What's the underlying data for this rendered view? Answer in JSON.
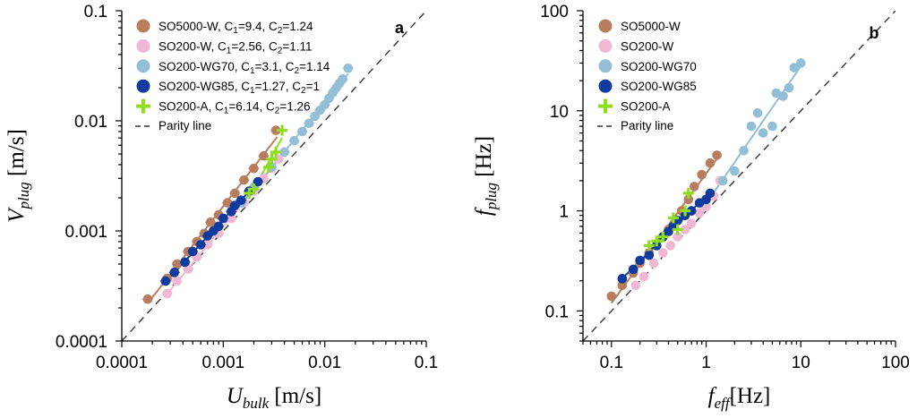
{
  "colors": {
    "SO5000-W": "#b87d5f",
    "SO200-W": "#f0b8d2",
    "SO200-WG70": "#92bfd6",
    "SO200-WG85": "#0f3a9e",
    "SO200-A": "#8ede1e",
    "parity": "#333333"
  },
  "chart_data": [
    {
      "type": "scatter",
      "panel_label": "a",
      "xlabel": {
        "main": "U",
        "sub": "bulk",
        "unit": " [m/s]"
      },
      "ylabel": {
        "main": "V",
        "sub": "plug",
        "unit": " [m/s]"
      },
      "xscale": "log",
      "yscale": "log",
      "xlim": [
        0.0001,
        0.1
      ],
      "ylim": [
        0.0001,
        0.1
      ],
      "xticks": [
        0.0001,
        0.001,
        0.01,
        0.1
      ],
      "xtick_labels": [
        "0.0001",
        "0.001",
        "0.01",
        "0.1"
      ],
      "yticks": [
        0.0001,
        0.001,
        0.01,
        0.1
      ],
      "ytick_labels": [
        "0.0001",
        "0.001",
        "0.01",
        "0.1"
      ],
      "legend_position": "top-left",
      "series": [
        {
          "name": "SO5000-W",
          "legend_c1": "9.4",
          "legend_c2": "1.24",
          "marker": "circle",
          "x": [
            0.00018,
            0.00028,
            0.00035,
            0.00045,
            0.00055,
            0.00065,
            0.00075,
            0.0009,
            0.0011,
            0.0013,
            0.0016,
            0.002,
            0.0025,
            0.0033
          ],
          "y": [
            0.00024,
            0.00037,
            0.0005,
            0.00065,
            0.0008,
            0.00095,
            0.0012,
            0.0014,
            0.0018,
            0.0022,
            0.0029,
            0.0037,
            0.0048,
            0.0082
          ]
        },
        {
          "name": "SO200-W",
          "legend_c1": "2.56",
          "legend_c2": "1.11",
          "marker": "circle",
          "x": [
            0.00028,
            0.00035,
            0.00045,
            0.00055,
            0.0007,
            0.0009,
            0.0012,
            0.0016,
            0.002,
            0.0025,
            0.003,
            0.0035,
            0.004
          ],
          "y": [
            0.00027,
            0.00035,
            0.00045,
            0.00058,
            0.00075,
            0.00095,
            0.0013,
            0.0018,
            0.0023,
            0.003,
            0.0037,
            0.0045,
            0.0052
          ]
        },
        {
          "name": "SO200-WG70",
          "legend_c1": "3.1",
          "legend_c2": "1.14",
          "marker": "circle",
          "x": [
            0.0015,
            0.002,
            0.003,
            0.004,
            0.005,
            0.006,
            0.007,
            0.008,
            0.009,
            0.01,
            0.011,
            0.012,
            0.013,
            0.014,
            0.015,
            0.017
          ],
          "y": [
            0.0018,
            0.0025,
            0.0038,
            0.0052,
            0.0066,
            0.008,
            0.0095,
            0.011,
            0.0125,
            0.014,
            0.016,
            0.018,
            0.02,
            0.022,
            0.024,
            0.03
          ]
        },
        {
          "name": "SO200-WG85",
          "legend_c1": "1.27",
          "legend_c2": "1",
          "marker": "circle",
          "x": [
            0.00027,
            0.00033,
            0.00042,
            0.0005,
            0.0006,
            0.0007,
            0.0008,
            0.0009,
            0.001,
            0.0012,
            0.0013,
            0.0015,
            0.0018,
            0.0022
          ],
          "y": [
            0.00035,
            0.00042,
            0.00052,
            0.00065,
            0.00075,
            0.0009,
            0.001,
            0.0011,
            0.0013,
            0.0015,
            0.0017,
            0.0019,
            0.0023,
            0.0028
          ]
        },
        {
          "name": "SO200-A",
          "legend_c1": "6.14",
          "legend_c2": "1.26",
          "marker": "plus",
          "x": [
            0.0018,
            0.002,
            0.0028,
            0.003,
            0.0033,
            0.0038
          ],
          "y": [
            0.0022,
            0.0024,
            0.0038,
            0.0045,
            0.0052,
            0.0082
          ]
        }
      ],
      "fit_lines": [
        {
          "series": "SO5000-W",
          "x": [
            0.00018,
            0.0034
          ]
        },
        {
          "series": "SO200-W",
          "x": [
            0.00027,
            0.0043
          ]
        },
        {
          "series": "SO200-WG70",
          "x": [
            0.0015,
            0.017
          ]
        },
        {
          "series": "SO200-WG85",
          "x": [
            0.00026,
            0.0024
          ]
        },
        {
          "series": "SO200-A",
          "x": [
            0.0018,
            0.0038
          ]
        }
      ],
      "parity_label": "Parity line"
    },
    {
      "type": "scatter",
      "panel_label": "b",
      "xlabel": {
        "main": "f",
        "sub": "eff",
        "unit": "[Hz]"
      },
      "ylabel": {
        "main": "f",
        "sub": "plug",
        "unit": " [Hz]"
      },
      "xscale": "log",
      "yscale": "log",
      "xlim": [
        0.05,
        100
      ],
      "ylim": [
        0.05,
        100
      ],
      "xticks": [
        0.1,
        1,
        10,
        100
      ],
      "xtick_labels": [
        "0.1",
        "1",
        "10",
        "100"
      ],
      "yticks": [
        0.1,
        1,
        10,
        100
      ],
      "ytick_labels": [
        "0.1",
        "1",
        "10",
        "100"
      ],
      "legend_position": "top-left",
      "series": [
        {
          "name": "SO5000-W",
          "marker": "circle",
          "x": [
            0.1,
            0.13,
            0.17,
            0.2,
            0.25,
            0.3,
            0.35,
            0.4,
            0.5,
            0.55,
            0.65,
            0.75,
            0.9,
            1.1,
            1.3
          ],
          "y": [
            0.14,
            0.18,
            0.24,
            0.3,
            0.38,
            0.45,
            0.55,
            0.65,
            0.8,
            1.0,
            1.3,
            1.75,
            2.3,
            3.0,
            3.6
          ]
        },
        {
          "name": "SO200-W",
          "marker": "circle",
          "x": [
            0.18,
            0.22,
            0.28,
            0.35,
            0.42,
            0.5,
            0.6,
            0.7,
            0.85,
            1.0,
            1.2,
            1.4
          ],
          "y": [
            0.18,
            0.22,
            0.3,
            0.38,
            0.45,
            0.55,
            0.65,
            0.75,
            0.95,
            1.1,
            1.4,
            2.0
          ]
        },
        {
          "name": "SO200-WG70",
          "marker": "circle",
          "x": [
            1.0,
            1.5,
            2.0,
            2.5,
            3.0,
            3.5,
            4.0,
            5.0,
            5.5,
            6.5,
            7.5,
            8.5,
            10
          ],
          "y": [
            1.3,
            2.0,
            2.5,
            4.0,
            7.0,
            9.5,
            6.0,
            7.0,
            15,
            14,
            17,
            27,
            30
          ]
        },
        {
          "name": "SO200-WG85",
          "marker": "circle",
          "x": [
            0.13,
            0.17,
            0.2,
            0.25,
            0.3,
            0.35,
            0.4,
            0.45,
            0.5,
            0.6,
            0.7,
            0.85,
            1.0,
            1.1
          ],
          "y": [
            0.21,
            0.26,
            0.32,
            0.36,
            0.45,
            0.55,
            0.62,
            0.7,
            0.8,
            0.9,
            1.0,
            1.2,
            1.3,
            1.5
          ]
        },
        {
          "name": "SO200-A",
          "marker": "plus",
          "x": [
            0.25,
            0.3,
            0.35,
            0.45,
            0.5,
            0.6,
            0.65
          ],
          "y": [
            0.45,
            0.5,
            0.55,
            0.85,
            0.65,
            1.0,
            1.5
          ]
        }
      ],
      "fit_lines": [
        {
          "series": "SO5000-W",
          "x": [
            0.1,
            1.35
          ]
        },
        {
          "series": "SO200-WG70",
          "x": [
            1.0,
            10
          ]
        },
        {
          "series": "SO200-WG85",
          "x": [
            0.12,
            1.15
          ]
        }
      ],
      "parity_label": "Parity line"
    }
  ]
}
